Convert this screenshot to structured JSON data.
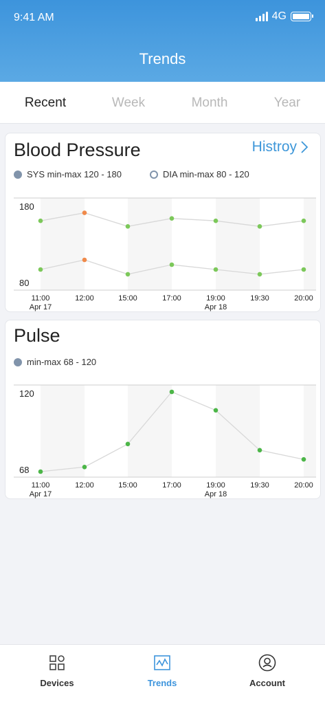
{
  "status": {
    "time": "9:41 AM",
    "network": "4G"
  },
  "header": {
    "title": "Trends"
  },
  "tabs": [
    {
      "label": "Recent",
      "active": true
    },
    {
      "label": "Week",
      "active": false
    },
    {
      "label": "Month",
      "active": false
    },
    {
      "label": "Year",
      "active": false
    }
  ],
  "bp_card": {
    "title": "Blood Pressure",
    "history_label": "Histroy",
    "legend_sys": "SYS min-max 120 - 180",
    "legend_dia": "DIA min-max 80 - 120"
  },
  "pulse_card": {
    "title": "Pulse",
    "legend": "min-max 68 - 120"
  },
  "colors": {
    "accent": "#3d94dc",
    "normal": "#7cc85a",
    "pulse": "#4cb648",
    "warning": "#f08a4b",
    "line": "#d8d8d8"
  },
  "chart_data": [
    {
      "type": "line",
      "title": "Blood Pressure",
      "x": [
        "11:00",
        "12:00",
        "15:00",
        "17:00",
        "19:00",
        "19:30",
        "20:00"
      ],
      "date_labels": [
        {
          "x": "11:00",
          "label": "Apr 17"
        },
        {
          "x": "19:00",
          "label": "Apr 18"
        }
      ],
      "ylim": [
        80,
        180
      ],
      "y_ticks": [
        180,
        80
      ],
      "series": [
        {
          "name": "SYS",
          "values": [
            160,
            170,
            153,
            163,
            160,
            153,
            160
          ],
          "colors": [
            "normal",
            "warning",
            "normal",
            "normal",
            "normal",
            "normal",
            "normal"
          ]
        },
        {
          "name": "DIA",
          "values": [
            99,
            111,
            93,
            105,
            99,
            93,
            99
          ],
          "colors": [
            "normal",
            "warning",
            "normal",
            "normal",
            "normal",
            "normal",
            "normal"
          ]
        }
      ]
    },
    {
      "type": "line",
      "title": "Pulse",
      "x": [
        "11:00",
        "12:00",
        "15:00",
        "17:00",
        "19:00",
        "19:30",
        "20:00"
      ],
      "date_labels": [
        {
          "x": "11:00",
          "label": "Apr 17"
        },
        {
          "x": "19:00",
          "label": "Apr 18"
        }
      ],
      "ylim": [
        68,
        120
      ],
      "y_ticks": [
        120,
        68
      ],
      "series": [
        {
          "values": [
            68,
            71,
            86,
            120,
            108,
            82,
            76
          ]
        }
      ]
    }
  ],
  "nav": [
    {
      "label": "Devices",
      "icon": "devices-icon",
      "active": false
    },
    {
      "label": "Trends",
      "icon": "trends-icon",
      "active": true
    },
    {
      "label": "Account",
      "icon": "account-icon",
      "active": false
    }
  ]
}
